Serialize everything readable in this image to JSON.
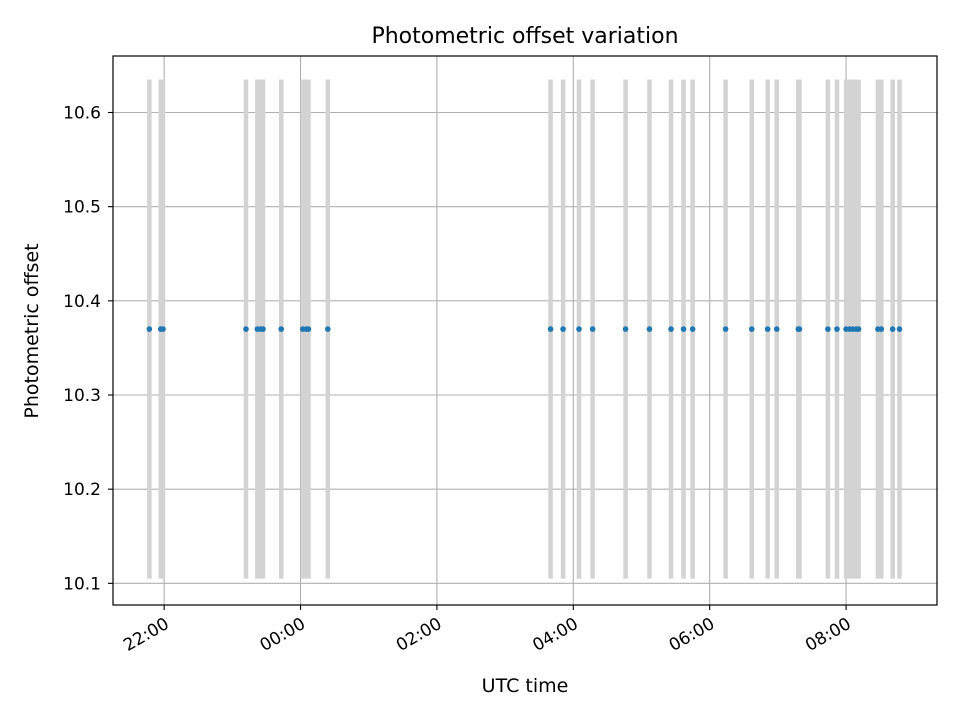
{
  "chart_data": {
    "type": "scatter",
    "title": "Photometric offset variation",
    "xlabel": "UTC time",
    "ylabel": "Photometric offset",
    "x_unit": "hours UTC",
    "xlim": [
      "21:15",
      "09:20"
    ],
    "ylim": [
      10.077,
      10.66
    ],
    "grid": true,
    "colors": {
      "points": "#1f77b4",
      "errorbars": "#d3d3d3",
      "grid": "#b0b0b0",
      "axes": "#000000"
    },
    "x_ticks": [
      {
        "value": "22:00",
        "label": "22:00"
      },
      {
        "value": "00:00",
        "label": "00:00"
      },
      {
        "value": "02:00",
        "label": "02:00"
      },
      {
        "value": "04:00",
        "label": "04:00"
      },
      {
        "value": "06:00",
        "label": "06:00"
      },
      {
        "value": "08:00",
        "label": "08:00"
      }
    ],
    "y_ticks": [
      {
        "value": 10.1,
        "label": "10.1"
      },
      {
        "value": 10.2,
        "label": "10.2"
      },
      {
        "value": 10.3,
        "label": "10.3"
      },
      {
        "value": 10.4,
        "label": "10.4"
      },
      {
        "value": 10.5,
        "label": "10.5"
      },
      {
        "value": 10.6,
        "label": "10.6"
      }
    ],
    "error_low": 10.105,
    "error_high": 10.635,
    "points": [
      {
        "x": "21:47",
        "y": 10.37
      },
      {
        "x": "21:57",
        "y": 10.37
      },
      {
        "x": "21:59",
        "y": 10.37
      },
      {
        "x": "23:12",
        "y": 10.37
      },
      {
        "x": "23:22",
        "y": 10.37
      },
      {
        "x": "23:25",
        "y": 10.37
      },
      {
        "x": "23:27",
        "y": 10.37
      },
      {
        "x": "23:43",
        "y": 10.37
      },
      {
        "x": "00:02",
        "y": 10.37
      },
      {
        "x": "00:05",
        "y": 10.37
      },
      {
        "x": "00:07",
        "y": 10.37
      },
      {
        "x": "00:24",
        "y": 10.37
      },
      {
        "x": "03:40",
        "y": 10.37
      },
      {
        "x": "03:51",
        "y": 10.37
      },
      {
        "x": "04:05",
        "y": 10.37
      },
      {
        "x": "04:17",
        "y": 10.37
      },
      {
        "x": "04:46",
        "y": 10.37
      },
      {
        "x": "05:07",
        "y": 10.37
      },
      {
        "x": "05:26",
        "y": 10.37
      },
      {
        "x": "05:37",
        "y": 10.37
      },
      {
        "x": "05:45",
        "y": 10.37
      },
      {
        "x": "06:14",
        "y": 10.37
      },
      {
        "x": "06:37",
        "y": 10.37
      },
      {
        "x": "06:51",
        "y": 10.37
      },
      {
        "x": "06:59",
        "y": 10.37
      },
      {
        "x": "07:18",
        "y": 10.37
      },
      {
        "x": "07:19",
        "y": 10.37
      },
      {
        "x": "07:44",
        "y": 10.37
      },
      {
        "x": "07:52",
        "y": 10.37
      },
      {
        "x": "08:00",
        "y": 10.37
      },
      {
        "x": "08:03",
        "y": 10.37
      },
      {
        "x": "08:06",
        "y": 10.37
      },
      {
        "x": "08:09",
        "y": 10.37
      },
      {
        "x": "08:11",
        "y": 10.37
      },
      {
        "x": "08:28",
        "y": 10.37
      },
      {
        "x": "08:31",
        "y": 10.37
      },
      {
        "x": "08:41",
        "y": 10.37
      },
      {
        "x": "08:47",
        "y": 10.37
      }
    ]
  }
}
